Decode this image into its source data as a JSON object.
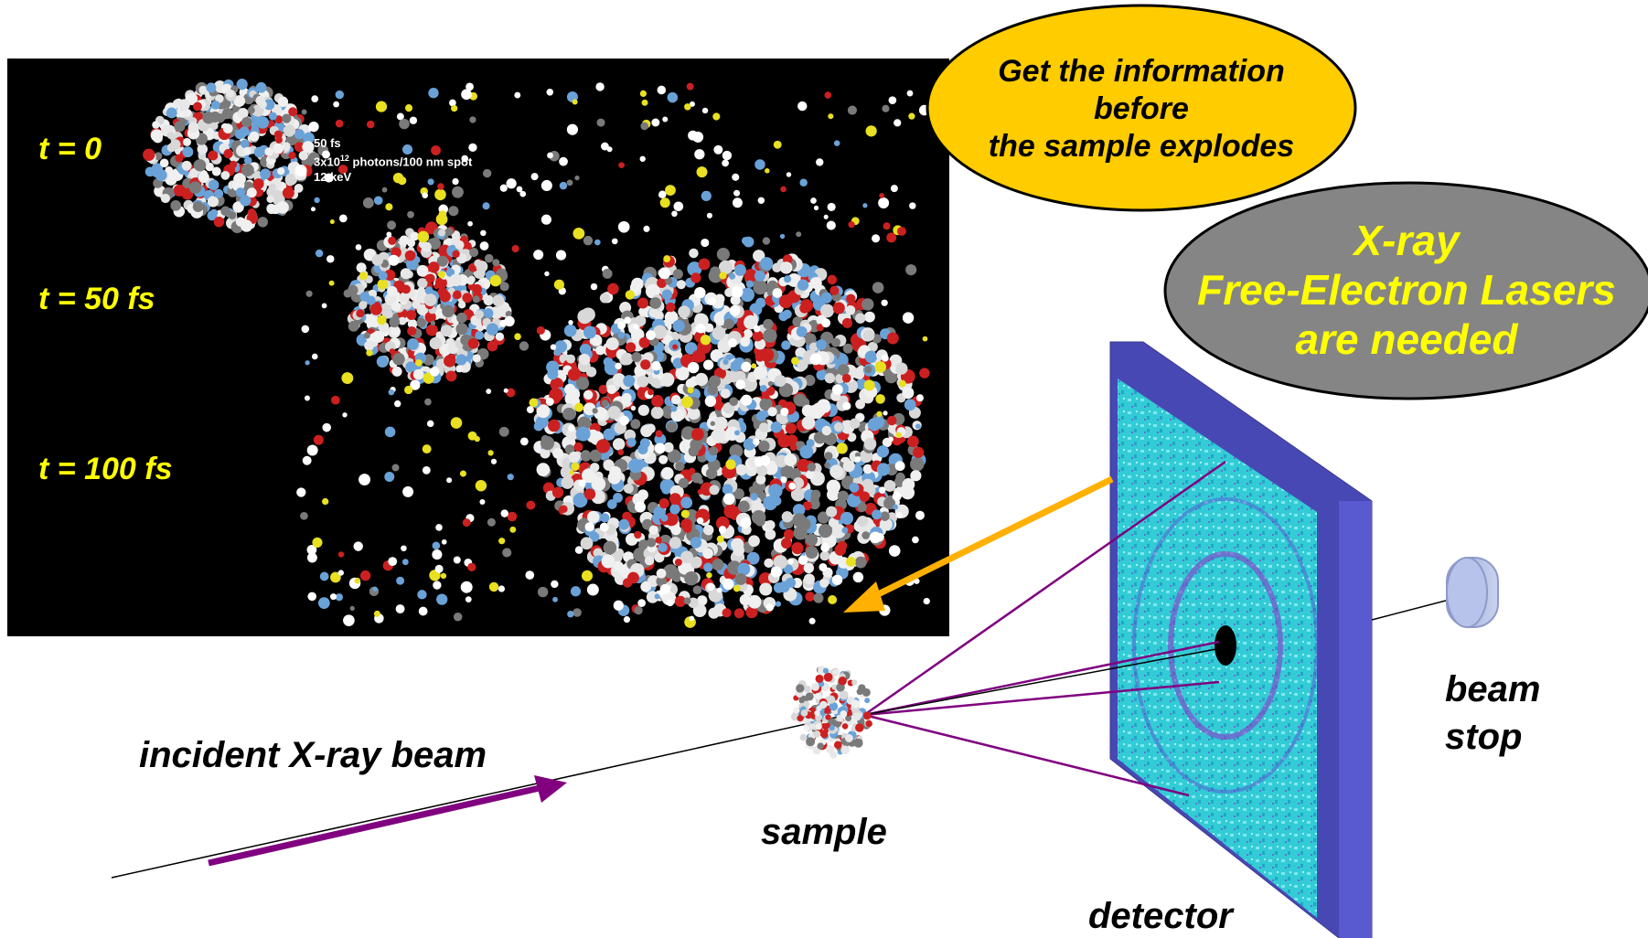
{
  "simulation": {
    "params": [
      "50 fs",
      "3x10",
      "12",
      " photons/100 nm spot",
      "12 keV"
    ],
    "time_labels": [
      "t = 0",
      "t = 50 fs",
      "t = 100 fs"
    ]
  },
  "callouts": {
    "yellow": [
      "Get the information",
      "before",
      "the sample explodes"
    ],
    "gray": [
      "X-ray",
      "Free-Electron Lasers",
      "are needed"
    ]
  },
  "labels": {
    "incident_beam": "incident X-ray beam",
    "sample": "sample",
    "detector": "detector",
    "beam_stop": [
      "beam",
      "stop"
    ]
  },
  "colors": {
    "yellow_bubble": "#ffcc00",
    "gray_bubble": "#858585",
    "gray_bubble_text": "#ffff00",
    "detector_frame": "#4b4bb8",
    "beam_arrow": "#800080",
    "pointer_arrow": "#ffb000",
    "time_label": "#ffff00"
  }
}
